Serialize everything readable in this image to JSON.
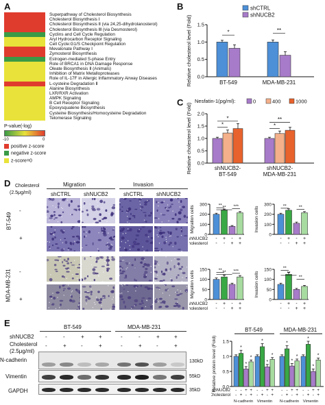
{
  "panels": {
    "A": {
      "label": "A",
      "pathways": [
        {
          "name": "Superpathway of Cholesterol Biosynthesis",
          "color": "#e03c2e"
        },
        {
          "name": "Cholesterol Biosynthesis Ⅰ",
          "color": "#e03c2e"
        },
        {
          "name": "Cholesterol Biosynthesis Ⅱ (via 24,25-dihydrolanosterol)",
          "color": "#e03c2e"
        },
        {
          "name": "Cholesterol Biosynthesis Ⅲ (via Desmosterol)",
          "color": "#e03c2e"
        },
        {
          "name": "Cyclins and Cell Cycle Regulation",
          "color": "#3a9a46"
        },
        {
          "name": "Aryl Hydrocarbon Receptor Signaling",
          "color": "#e8e23a"
        },
        {
          "name": "Cell Cycle:G1/S Checkpoint Regulation",
          "color": "#e8e23a"
        },
        {
          "name": "Mevalonate Pathway Ⅰ",
          "color": "#e03c2e"
        },
        {
          "name": "Zymosterol Biosynthesis",
          "color": "#e03c2e"
        },
        {
          "name": "Estrogen-mediated S-phase Entry",
          "color": "#3a9a46"
        },
        {
          "name": "Role of BRCA1 in DNA Damage Response",
          "color": "#e8e23a"
        },
        {
          "name": "Oleate Biosynthesis Ⅱ (Animals)",
          "color": "#e8e23a"
        },
        {
          "name": "Inhibition of Matrix Metalloproteases",
          "color": "#e8e23a"
        },
        {
          "name": "Role of IL-17F in Allergic Inflammatory Airway Diseases",
          "color": "#e8e23a"
        },
        {
          "name": "L-cysteine Degradation Ⅱ",
          "color": "#e03c2e"
        },
        {
          "name": "Alanine Biosynthesis",
          "color": "#e8e23a"
        },
        {
          "name": "LXR/RXR Activation",
          "color": "#e8e23a"
        },
        {
          "name": "AMPK Signaling",
          "color": "#e8e23a"
        },
        {
          "name": "B Cell Receptor Signaling",
          "color": "#e8e23a"
        },
        {
          "name": "Epoxysqualene Biosynthesis",
          "color": "#e8e23a"
        },
        {
          "name": "Cysteine Biosynthesis/Homocysteine Degradation",
          "color": "#e8e23a"
        },
        {
          "name": "Telomerase Signaling",
          "color": "#e8e23a"
        }
      ],
      "pvalue_title": "P-value(-log)",
      "scale_min": "-10",
      "scale_max": "0",
      "zlegend": [
        {
          "label": "positive z-score",
          "color": "#e03c2e"
        },
        {
          "label": "negative z-score",
          "color": "#3a9a46"
        },
        {
          "label": "z-score=0",
          "color": "#e8e23a"
        }
      ]
    },
    "B": {
      "label": "B",
      "ylabel": "Relative cholesterol level (Fold)",
      "legend": [
        {
          "name": "shCTRL",
          "color": "#4d90d8"
        },
        {
          "name": "shNUCB2",
          "color": "#a77bc9"
        }
      ],
      "yticks": [
        "0.0",
        "0.5",
        "1.0",
        "1.5"
      ],
      "groups": [
        "BT-549",
        "MDA-MB-231"
      ],
      "sig": [
        "*",
        "**"
      ]
    },
    "C": {
      "label": "C",
      "ylabel": "Relative cholesterol level (Fold)",
      "legend_title": "Nesfatin-1(pg/ml):",
      "legend": [
        {
          "name": "0",
          "color": "#a77bc9"
        },
        {
          "name": "400",
          "color": "#f3b08a"
        },
        {
          "name": "1000",
          "color": "#e8622d"
        }
      ],
      "yticks": [
        "0.0",
        "0.5",
        "1.0",
        "1.5",
        "2.0"
      ],
      "groups": [
        "shNUCB2-\nBT-549",
        "shNUCB2-\nMDA-MB-231"
      ],
      "group1": "shNUCB2-",
      "group1b": "BT-549",
      "group2": "shNUCB2-",
      "group2b": "MDA-MB-231",
      "sig": [
        "*",
        "*",
        "*",
        "**"
      ]
    },
    "D": {
      "label": "D",
      "cholesterol": "Cholesterol",
      "dose": "(2.5μg/ml)",
      "migration": "Migration",
      "invasion": "Invasion",
      "cols": [
        "shCTRL",
        "shNUCB2",
        "shCTRL",
        "shNUCB2"
      ],
      "rows": [
        "BT-549",
        "MDA-MB-231"
      ],
      "minus": "-",
      "plus": "+",
      "charts": [
        {
          "ylabel": "Migration cells",
          "yticks": [
            "0",
            "100",
            "200",
            "300"
          ],
          "sig": [
            "**",
            "**",
            "***"
          ]
        },
        {
          "ylabel": "Invasion cells",
          "yticks": [
            "0",
            "100",
            "200",
            "300"
          ],
          "sig": [
            "**",
            "**"
          ]
        },
        {
          "ylabel": "Migration cells",
          "yticks": [
            "0",
            "50",
            "100",
            "150"
          ],
          "sig": [
            "**",
            "**",
            "***"
          ]
        },
        {
          "ylabel": "Invasion cells",
          "yticks": [
            "0",
            "50",
            "100",
            "150"
          ],
          "sig": [
            "**",
            "**",
            "**"
          ]
        }
      ],
      "row_shNUCB2": "shNUCB2",
      "row_chol": "Cholesterol",
      "signs_sh": [
        "-",
        "+",
        "-",
        "+"
      ],
      "signs_ch": [
        "-",
        "-",
        "+",
        "+"
      ]
    },
    "E": {
      "label": "E",
      "cell_lines": [
        "BT-549",
        "MDA-MB-231"
      ],
      "row1": "shNUCB2",
      "row2": "Cholesterol",
      "row3": "(2.5μg/ml)",
      "signs_sh": [
        "-",
        "-",
        "+",
        "+",
        "-",
        "-",
        "+",
        "+"
      ],
      "signs_ch": [
        "-",
        "+",
        "-",
        "+",
        "-",
        "+",
        "-",
        "+"
      ],
      "proteins": [
        {
          "name": "N-cadherin",
          "kd": "130kD"
        },
        {
          "name": "Vimentin",
          "kd": "55kD"
        },
        {
          "name": "GAPDH",
          "kd": "35kD"
        }
      ],
      "chart": {
        "ylabel": "Relative protein level (Fold)",
        "yticks": [
          "0.0",
          "0.5",
          "1.0",
          "1.5"
        ],
        "titles": [
          "BT-549",
          "MDA-MB-231"
        ],
        "xlabels": [
          "N-cadherin",
          "Vimentin",
          "N-cadherin",
          "Vimentin"
        ],
        "row_sh": "shNUCB2",
        "row_ch": "Cholesterol"
      }
    }
  },
  "colors": {
    "blue": "#4d90d8",
    "purple": "#a77bc9",
    "green": "#39a845",
    "lightgreen": "#a7dba0",
    "peach": "#f3b08a",
    "orange": "#e8622d"
  },
  "chart_data": [
    {
      "type": "bar",
      "categories": [
        "BT-549",
        "MDA-MB-231"
      ],
      "series": [
        {
          "name": "shCTRL",
          "values": [
            1.0,
            1.0
          ]
        },
        {
          "name": "shNUCB2",
          "values": [
            0.82,
            0.62
          ]
        }
      ],
      "ylabel": "Relative cholesterol level (Fold)",
      "ylim": [
        0,
        1.5
      ]
    },
    {
      "type": "bar",
      "categories": [
        "shNUCB2-BT-549",
        "shNUCB2-MDA-MB-231"
      ],
      "series": [
        {
          "name": "0",
          "values": [
            1.0,
            1.0
          ]
        },
        {
          "name": "400",
          "values": [
            1.22,
            1.2
          ]
        },
        {
          "name": "1000",
          "values": [
            1.4,
            1.33
          ]
        }
      ],
      "ylabel": "Relative cholesterol level (Fold)",
      "ylim": [
        0,
        2.0
      ]
    },
    {
      "type": "bar",
      "categories": [
        "1",
        "2",
        "3",
        "4"
      ],
      "values": [
        200,
        240,
        80,
        215
      ],
      "ylabel": "Migration cells",
      "ylim": [
        0,
        300
      ]
    },
    {
      "type": "bar",
      "categories": [
        "1",
        "2",
        "3",
        "4"
      ],
      "values": [
        200,
        240,
        110,
        215
      ],
      "ylabel": "Invasion cells",
      "ylim": [
        0,
        300
      ]
    },
    {
      "type": "bar",
      "categories": [
        "1",
        "2",
        "3",
        "4"
      ],
      "values": [
        100,
        112,
        75,
        112
      ],
      "ylabel": "Migration cells",
      "ylim": [
        0,
        150
      ]
    },
    {
      "type": "bar",
      "categories": [
        "1",
        "2",
        "3",
        "4"
      ],
      "values": [
        75,
        125,
        50,
        65
      ],
      "ylabel": "Invasion cells",
      "ylim": [
        0,
        150
      ]
    },
    {
      "type": "bar",
      "categories": [
        "N-cadherin BT-549",
        "Vimentin BT-549",
        "N-cadherin MDA-MB-231",
        "Vimentin MDA-MB-231"
      ],
      "series": [
        {
          "name": "1",
          "values": [
            1.0,
            1.0,
            1.0,
            1.0
          ]
        },
        {
          "name": "2",
          "values": [
            1.1,
            1.32,
            1.25,
            1.4
          ]
        },
        {
          "name": "3",
          "values": [
            0.58,
            0.65,
            0.68,
            0.5
          ]
        },
        {
          "name": "4",
          "values": [
            0.82,
            0.9,
            0.85,
            0.88
          ]
        }
      ],
      "ylabel": "Relative protein level (Fold)",
      "ylim": [
        0,
        1.5
      ]
    }
  ]
}
